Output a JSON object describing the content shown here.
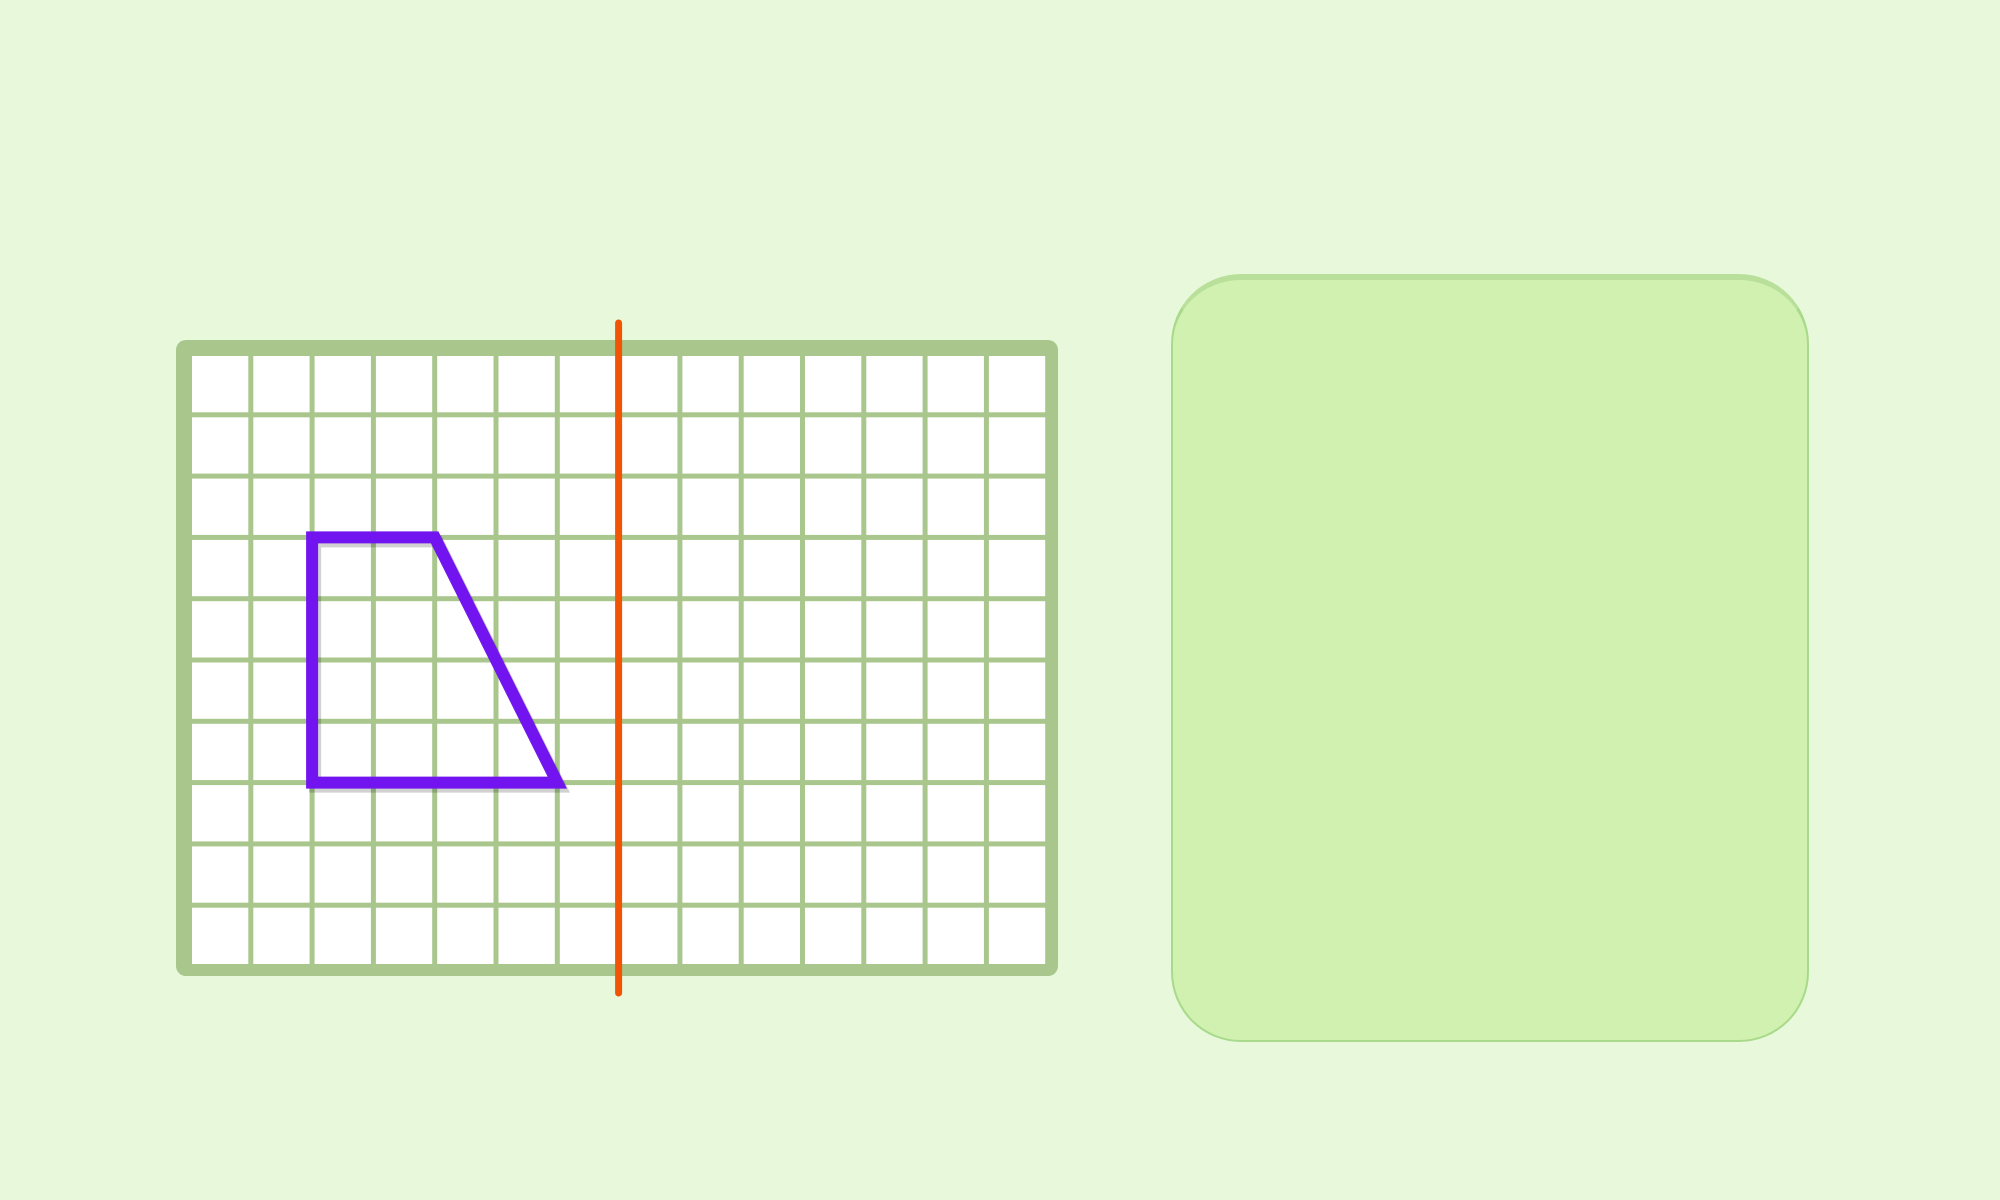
{
  "puzzle": {
    "grid": {
      "columns": 14,
      "rows": 10
    },
    "shape": {
      "vertices": [
        [
          2,
          3
        ],
        [
          4,
          3
        ],
        [
          6,
          7
        ],
        [
          2,
          7
        ]
      ]
    },
    "mirror_line": {
      "orientation": "vertical",
      "at_column": 7
    },
    "colors": {
      "background": "#e8f8da",
      "grid_frame": "#a9c78c",
      "cell_fill": "#ffffff",
      "shape_stroke": "#7214f0",
      "mirror_line": "#f25406",
      "drop_panel": "#d0f1b0"
    }
  }
}
